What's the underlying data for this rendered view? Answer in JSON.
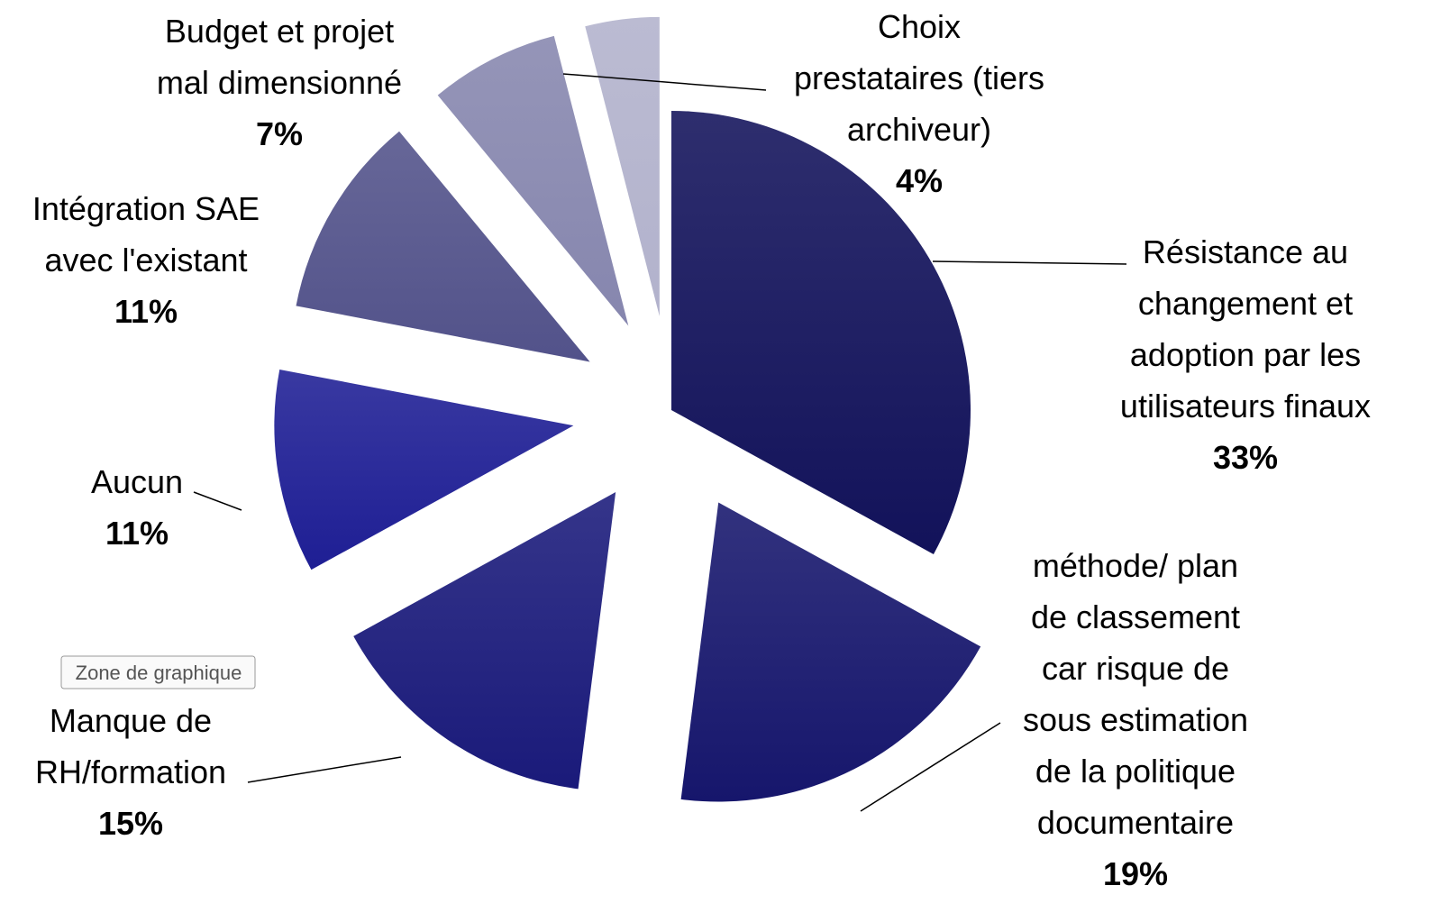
{
  "chart_data": {
    "type": "pie",
    "categories": [
      "Résistance au\nchangement et\nadoption par les\nutilisateurs finaux",
      "méthode/ plan\nde classement\ncar risque de\nsous estimation\nde la politique\ndocumentaire",
      "Manque de\nRH/formation",
      "Aucun",
      "Intégration SAE\navec l'existant",
      "Budget et projet\nmal dimensionné",
      "Choix\nprestataires (tiers\narchiveur)"
    ],
    "values": [
      33,
      19,
      15,
      11,
      11,
      7,
      4
    ],
    "value_labels": [
      "33%",
      "19%",
      "15%",
      "11%",
      "11%",
      "7%",
      "4%"
    ],
    "colors": [
      "#12125a",
      "#16166c",
      "#1a1a7a",
      "#1e1e94",
      "#52528a",
      "#8686ae",
      "#b2b2cc"
    ]
  },
  "tooltip": "Zone de graphique"
}
